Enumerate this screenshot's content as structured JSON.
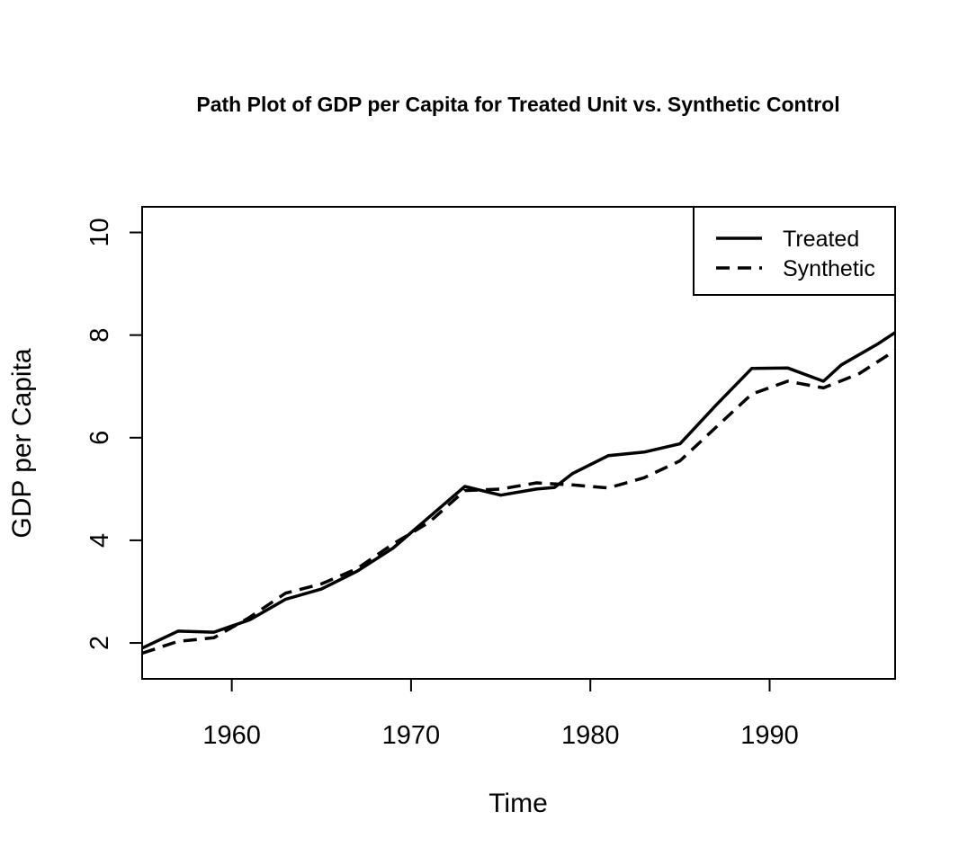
{
  "chart_data": {
    "type": "line",
    "title": "Path Plot of GDP per Capita for Treated Unit vs. Synthetic Control",
    "xlabel": "Time",
    "ylabel": "GDP per Capita",
    "xlim": [
      1955,
      1997
    ],
    "ylim": [
      1.3,
      10.5
    ],
    "xticks": [
      1960,
      1970,
      1980,
      1990
    ],
    "yticks": [
      2,
      4,
      6,
      8,
      10
    ],
    "grid": false,
    "legend_position": "top-right",
    "series": [
      {
        "name": "Treated",
        "line_style": "solid",
        "color": "#000000",
        "x": [
          1955,
          1957,
          1959,
          1961,
          1963,
          1965,
          1967,
          1969,
          1971,
          1973,
          1975,
          1977,
          1978,
          1979,
          1981,
          1983,
          1985,
          1987,
          1989,
          1991,
          1993,
          1994,
          1996,
          1997
        ],
        "y": [
          1.9,
          2.23,
          2.21,
          2.45,
          2.85,
          3.05,
          3.4,
          3.85,
          4.45,
          5.05,
          4.88,
          5.0,
          5.03,
          5.3,
          5.65,
          5.72,
          5.88,
          6.63,
          7.35,
          7.36,
          7.1,
          7.42,
          7.82,
          8.05
        ]
      },
      {
        "name": "Synthetic",
        "line_style": "dashed",
        "color": "#000000",
        "x": [
          1955,
          1957,
          1959,
          1961,
          1963,
          1965,
          1967,
          1969,
          1971,
          1973,
          1975,
          1977,
          1979,
          1981,
          1983,
          1985,
          1987,
          1989,
          1991,
          1993,
          1995,
          1997
        ],
        "y": [
          1.8,
          2.03,
          2.1,
          2.5,
          2.97,
          3.15,
          3.45,
          3.93,
          4.35,
          4.97,
          5.0,
          5.12,
          5.08,
          5.02,
          5.22,
          5.55,
          6.2,
          6.85,
          7.1,
          6.97,
          7.25,
          7.7
        ]
      }
    ]
  }
}
